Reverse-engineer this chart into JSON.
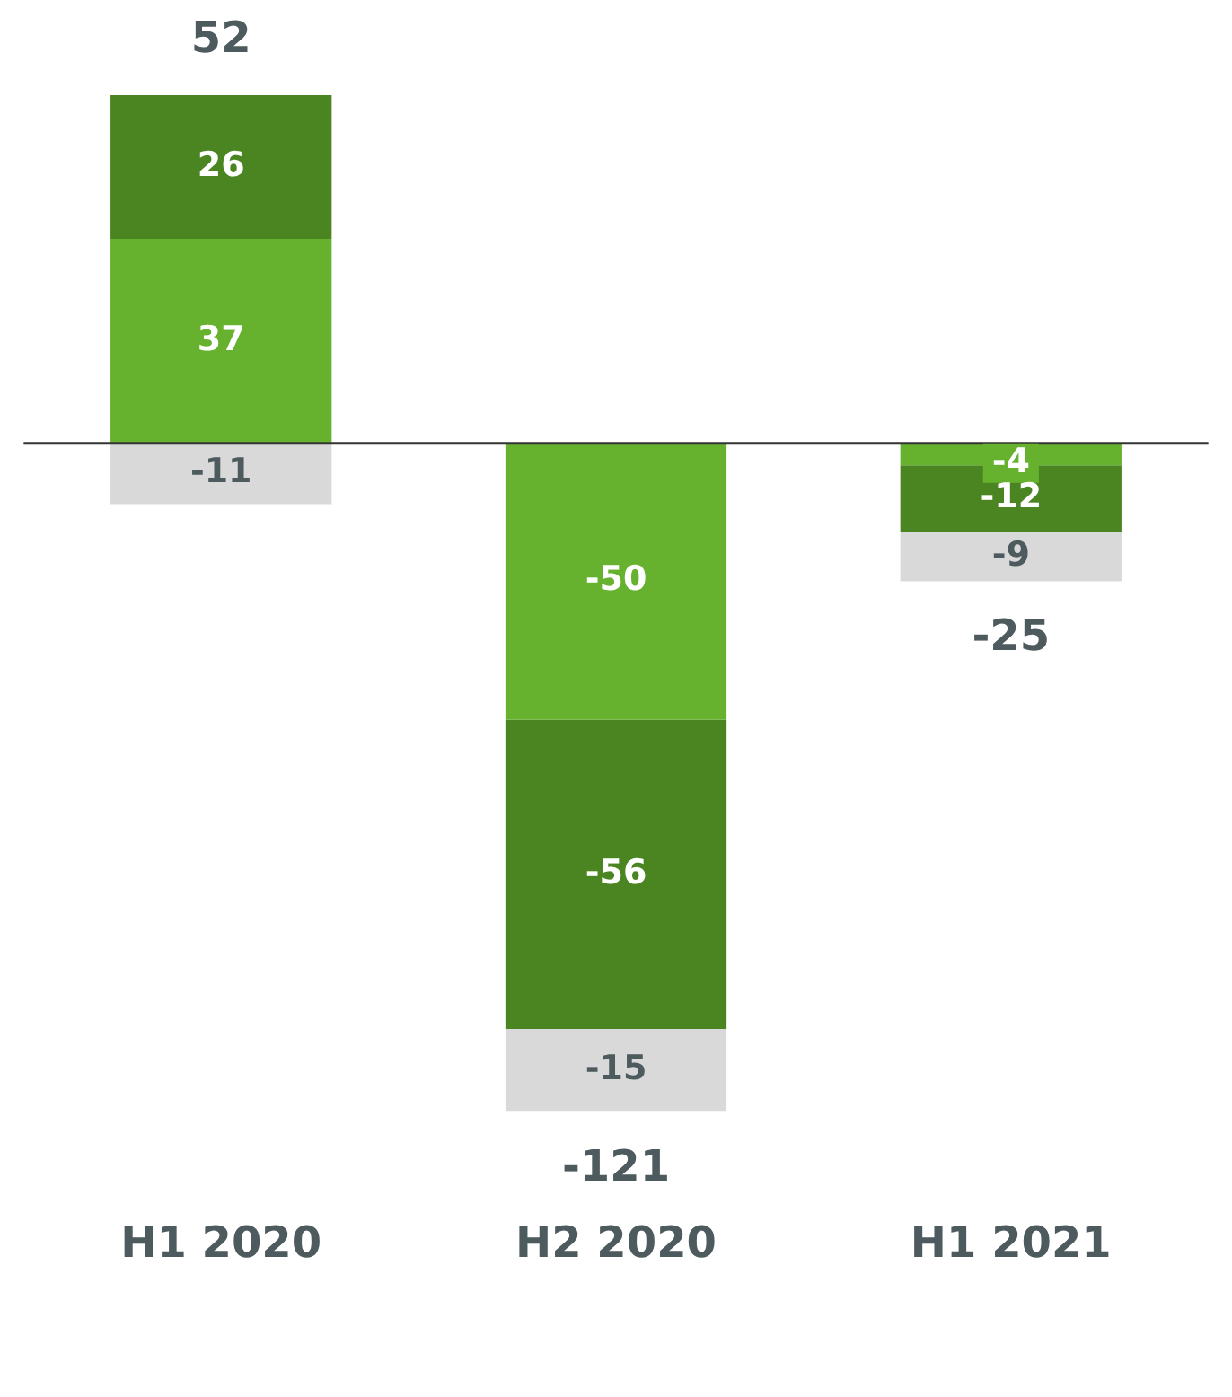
{
  "chart_data": {
    "type": "bar",
    "stacked": true,
    "categories": [
      "H1 2020",
      "H2 2020",
      "H1 2021"
    ],
    "series": [
      {
        "color": "#66b22f",
        "values": [
          37,
          -50,
          -4
        ]
      },
      {
        "color": "#4b8522",
        "values": [
          26,
          -56,
          -12
        ]
      },
      {
        "color": "#d9d9d9",
        "values": [
          -11,
          -15,
          -9
        ]
      }
    ],
    "data_labels": true,
    "totals": [
      "52",
      "-121",
      "-25"
    ],
    "legend": false,
    "grid": false
  }
}
